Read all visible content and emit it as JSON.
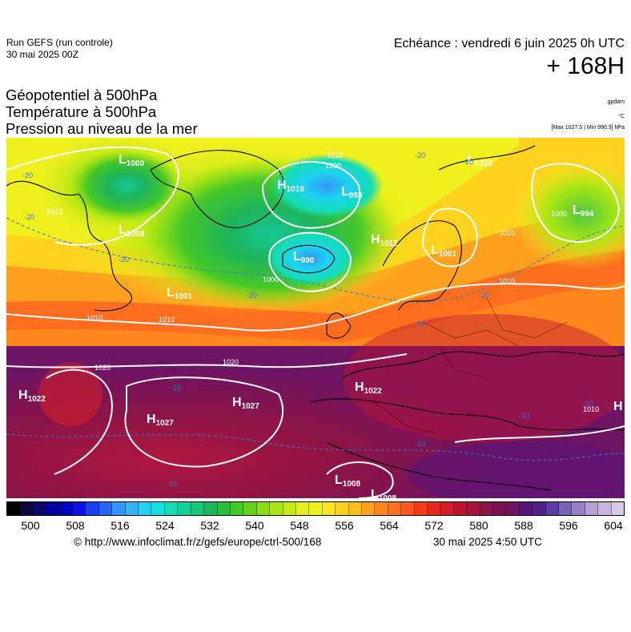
{
  "header": {
    "run_title": "Run GEFS (run controle)",
    "run_date": "30 mai 2025 00Z",
    "echeance": "Echéance : vendredi 6 juin 2025 0h UTC",
    "lead_time": "+ 168H"
  },
  "parameters": {
    "geopotential": "Géopotentiel à 500hPa",
    "temperature": "Température à 500hPa",
    "pressure": "Pression au niveau de la mer"
  },
  "units": {
    "geopotential": "gpdam",
    "temperature": "°C",
    "pressure": "[Max 1027.5 | Min 990.3] hPa"
  },
  "pressure_centers": [
    {
      "type": "H",
      "value": "1019"
    },
    {
      "type": "L",
      "value": "993"
    },
    {
      "type": "L",
      "value": "1000"
    },
    {
      "type": "L",
      "value": "1020"
    },
    {
      "type": "L",
      "value": "994"
    },
    {
      "type": "L",
      "value": "1008"
    },
    {
      "type": "H",
      "value": "1012"
    },
    {
      "type": "L",
      "value": "990"
    },
    {
      "type": "L",
      "value": "1001"
    },
    {
      "type": "L",
      "value": "1001"
    },
    {
      "type": "H",
      "value": "1022"
    },
    {
      "type": "H",
      "value": "1027"
    },
    {
      "type": "H",
      "value": "1027"
    },
    {
      "type": "H",
      "value": "1022"
    },
    {
      "type": "L",
      "value": "1008"
    },
    {
      "type": "L",
      "value": "1008"
    },
    {
      "type": "H",
      "value": ""
    }
  ],
  "isobar_labels": [
    "1000",
    "1010",
    "1010",
    "1010",
    "1010",
    "1010",
    "1010",
    "1020",
    "1020",
    "1000",
    "1000",
    "1010"
  ],
  "temperature_labels": [
    "-20",
    "-20",
    "-20",
    "-20",
    "-20",
    "-20",
    "-20",
    "-20",
    "-10",
    "-10",
    "-10",
    "-10",
    "-10"
  ],
  "colorbar": {
    "colors": [
      "#000000",
      "#0a0a3c",
      "#0a0a6e",
      "#0000a0",
      "#0000c8",
      "#0a14e6",
      "#1e3cf0",
      "#2864f5",
      "#3296f5",
      "#32b4f5",
      "#1ed2f0",
      "#14e1dc",
      "#14dcb4",
      "#14d296",
      "#14c878",
      "#1eb45a",
      "#28be3c",
      "#46c828",
      "#64d21e",
      "#8cdc14",
      "#aae614",
      "#c8eb14",
      "#e1f01e",
      "#f0f01e",
      "#fae61e",
      "#ffd21e",
      "#ffbe1e",
      "#ffa01e",
      "#ff871e",
      "#ff6e1e",
      "#ff551e",
      "#f53c1e",
      "#e6281e",
      "#d21e28",
      "#be1432",
      "#a5143c",
      "#8c1446",
      "#7a1450",
      "#6e1464",
      "#5a1478",
      "#50208c",
      "#5a3ca0",
      "#7864b4",
      "#9682c3",
      "#b4a0d2",
      "#c8b4dc",
      "#d7c8e6"
    ],
    "ticks": [
      "500",
      "508",
      "516",
      "524",
      "532",
      "540",
      "548",
      "556",
      "564",
      "572",
      "580",
      "588",
      "596",
      "604"
    ]
  },
  "footer": {
    "credit": "© http://www.infoclimat.fr/z/gefs/europe/ctrl-500/168",
    "generated": "30 mai 2025  4:50 UTC"
  }
}
